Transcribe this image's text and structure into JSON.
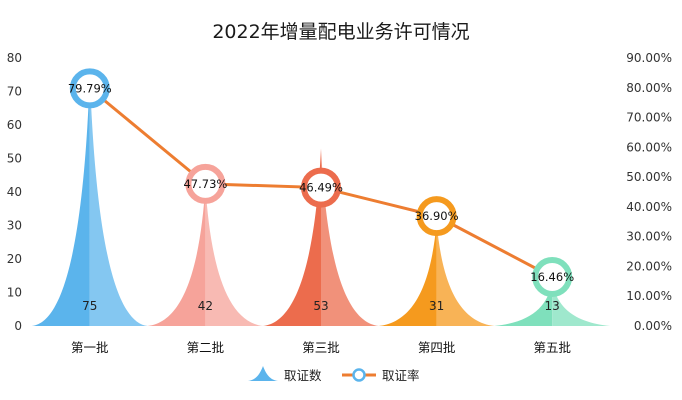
{
  "chart_data": {
    "type": "bar",
    "title": "2022年增量配电业务许可情况",
    "categories": [
      "第一批",
      "第二批",
      "第三批",
      "第四批",
      "第五批"
    ],
    "series": [
      {
        "name": "取证数",
        "kind": "bar",
        "axis": "left",
        "values": [
          75,
          42,
          53,
          31,
          13
        ],
        "value_labels": [
          "75",
          "42",
          "53",
          "31",
          "13"
        ],
        "colors": [
          "#5BB4EC",
          "#F6A39A",
          "#EC6C4D",
          "#F59A1E",
          "#7FE0BC"
        ]
      },
      {
        "name": "取证率",
        "kind": "line",
        "axis": "right",
        "values": [
          79.79,
          47.73,
          46.49,
          36.9,
          16.46
        ],
        "value_labels": [
          "79.79%",
          "47.73%",
          "46.49%",
          "36.90%",
          "16.46%"
        ],
        "color": "#ED7D31",
        "marker_colors": [
          "#5BB4EC",
          "#F6A39A",
          "#EC6C4D",
          "#F59A1E",
          "#7FE0BC"
        ]
      }
    ],
    "y_left": {
      "ylim": [
        0,
        80
      ],
      "ticks": [
        "0",
        "10",
        "20",
        "30",
        "40",
        "50",
        "60",
        "70",
        "80"
      ]
    },
    "y_right": {
      "ylim": [
        0,
        90
      ],
      "ticks": [
        "0.00%",
        "10.00%",
        "20.00%",
        "30.00%",
        "40.00%",
        "50.00%",
        "60.00%",
        "70.00%",
        "80.00%",
        "90.00%"
      ]
    },
    "grid": false,
    "legend": {
      "position": "bottom",
      "entries": [
        {
          "label": "取证数",
          "symbol": "peak",
          "color": "#5BB4EC"
        },
        {
          "label": "取证率",
          "symbol": "line-circle",
          "color": "#ED7D31",
          "marker_color": "#5BB4EC"
        }
      ]
    }
  }
}
